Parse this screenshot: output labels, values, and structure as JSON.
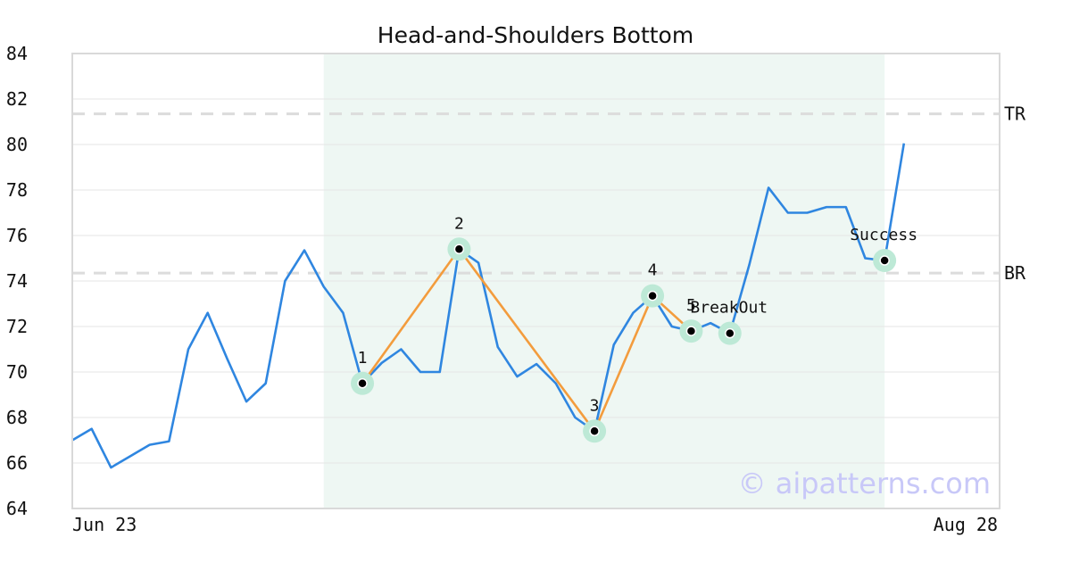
{
  "chart_data": {
    "type": "line",
    "title": "Head-and-Shoulders Bottom",
    "xlabel": "",
    "ylabel": "",
    "ylim": [
      64,
      84
    ],
    "yticks": [
      64,
      66,
      68,
      70,
      72,
      74,
      76,
      78,
      80,
      82,
      84
    ],
    "x_tick_labels": [
      "Jun 23",
      "Aug 28"
    ],
    "grid": true,
    "colors": {
      "price": "#2f86e0",
      "pattern": "#f39c3d",
      "highlight_band": "#eef7f3",
      "marker_halo": "#bde9d6",
      "level_line": "#dcdcdc",
      "watermark": "#c8c8f8"
    },
    "price": [
      67.0,
      67.5,
      65.8,
      66.3,
      66.8,
      66.95,
      71.0,
      72.6,
      70.6,
      68.7,
      69.5,
      74.0,
      75.35,
      73.75,
      72.6,
      69.5,
      70.4,
      71.0,
      70.0,
      70.0,
      75.4,
      74.8,
      71.1,
      69.8,
      70.35,
      69.5,
      68.0,
      67.4,
      71.2,
      72.6,
      73.35,
      72.0,
      71.8,
      72.15,
      71.7,
      74.7,
      78.1,
      77.0,
      77.0,
      77.25,
      77.25,
      75.0,
      74.9,
      80.05
    ],
    "pattern_points": [
      {
        "index": 15,
        "value": 69.5,
        "label": "1"
      },
      {
        "index": 20,
        "value": 75.4,
        "label": "2"
      },
      {
        "index": 27,
        "value": 67.4,
        "label": "3"
      },
      {
        "index": 30,
        "value": 73.35,
        "label": "4"
      },
      {
        "index": 32,
        "value": 71.8,
        "label": "5"
      }
    ],
    "events": [
      {
        "index": 34,
        "value": 71.7,
        "label": "BreakOut"
      },
      {
        "index": 42,
        "value": 74.9,
        "label": "Success"
      }
    ],
    "levels": [
      {
        "name": "TR",
        "value": 81.35
      },
      {
        "name": "BR",
        "value": 74.35
      }
    ],
    "highlight_range": [
      13,
      42
    ],
    "watermark": "© aipatterns.com"
  }
}
